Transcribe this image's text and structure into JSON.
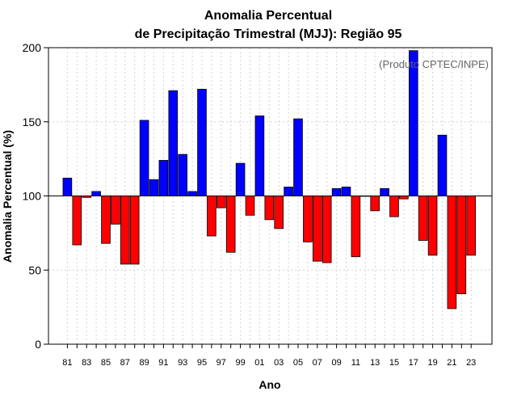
{
  "chart_data": {
    "type": "bar",
    "title_line1": "Anomalia Percentual",
    "title_line2": "de Precipitação Trimestral (MJJ): Região 95",
    "xlabel": "Ano",
    "ylabel": "Anomalia Percentual (%)",
    "credit": "(Produto CPTEC/INPE)",
    "baseline": 100,
    "ylim": [
      0,
      200
    ],
    "yticks": [
      0,
      50,
      100,
      150,
      200
    ],
    "years": [
      1981,
      1982,
      1983,
      1984,
      1985,
      1986,
      1987,
      1988,
      1989,
      1990,
      1991,
      1992,
      1993,
      1994,
      1995,
      1996,
      1997,
      1998,
      1999,
      2000,
      2001,
      2002,
      2003,
      2004,
      2005,
      2006,
      2007,
      2008,
      2009,
      2010,
      2011,
      2012,
      2013,
      2014,
      2015,
      2016,
      2017,
      2018,
      2019,
      2020,
      2021,
      2022,
      2023
    ],
    "values": [
      112,
      67,
      99,
      103,
      68,
      81,
      54,
      54,
      151,
      111,
      124,
      171,
      128,
      103,
      172,
      73,
      92,
      62,
      122,
      87,
      154,
      84,
      78,
      106,
      152,
      69,
      56,
      55,
      105,
      106,
      59,
      100,
      90,
      105,
      86,
      98,
      198,
      70,
      60,
      141,
      24,
      34,
      60
    ],
    "xtick_labels": [
      "81",
      "83",
      "85",
      "87",
      "89",
      "91",
      "93",
      "95",
      "97",
      "99",
      "01",
      "03",
      "05",
      "07",
      "09",
      "11",
      "13",
      "15",
      "17",
      "19",
      "21",
      "23"
    ],
    "colors": {
      "positive": "#0000ff",
      "negative": "#ff0000",
      "grid": "#d3d3d3",
      "credit": "#666666"
    },
    "grid": true
  }
}
